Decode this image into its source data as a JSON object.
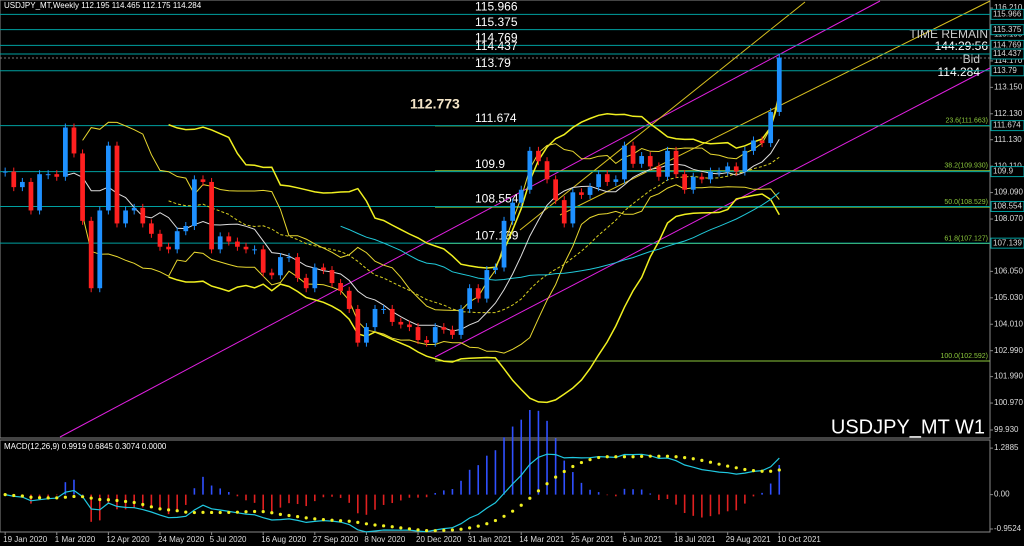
{
  "header": "USDJPY_MT,Weekly  112.195 114.465 112.175 114.284",
  "chart_data": {
    "type": "candlestick",
    "symbol_label": "USDJPY_MT W1",
    "annotation": "112.773",
    "time_remain_label": "TIME REMAIN",
    "time_remain": "144:29:56",
    "bid_label": "Bid",
    "bid": 114.284,
    "ylim": [
      99.66,
      116.52
    ],
    "yticks": [
      {
        "value": 116.21,
        "label": "116.210"
      },
      {
        "value": 115.19,
        "label": "115.190"
      },
      {
        "value": 114.17,
        "label": "114.170"
      },
      {
        "value": 113.15,
        "label": "113.150"
      },
      {
        "value": 112.13,
        "label": "112.130"
      },
      {
        "value": 111.13,
        "label": "111.130"
      },
      {
        "value": 110.11,
        "label": "110.110"
      },
      {
        "value": 109.09,
        "label": "109.090"
      },
      {
        "value": 108.07,
        "label": "108.070"
      },
      {
        "value": 107.05,
        "label": "107.050"
      },
      {
        "value": 106.05,
        "label": "106.050"
      },
      {
        "value": 105.03,
        "label": "105.030"
      },
      {
        "value": 104.01,
        "label": "104.010"
      },
      {
        "value": 102.99,
        "label": "102.990"
      },
      {
        "value": 101.99,
        "label": "101.990"
      },
      {
        "value": 100.97,
        "label": "100.970"
      },
      {
        "value": 99.93,
        "label": "99.930"
      }
    ],
    "xlim": [
      -0.6,
      114.5
    ],
    "xticks": [
      {
        "value": 0,
        "label": "19 Jan 2020"
      },
      {
        "value": 6,
        "label": "1 Mar 2020"
      },
      {
        "value": 12,
        "label": "12 Apr 2020"
      },
      {
        "value": 18,
        "label": "24 May 2020"
      },
      {
        "value": 24,
        "label": "5 Jul 2020"
      },
      {
        "value": 30,
        "label": "16 Aug 2020"
      },
      {
        "value": 36,
        "label": "27 Sep 2020"
      },
      {
        "value": 42,
        "label": "8 Nov 2020"
      },
      {
        "value": 48,
        "label": "20 Dec 2020"
      },
      {
        "value": 54,
        "label": "31 Jan 2021"
      },
      {
        "value": 60,
        "label": "14 Mar 2021"
      },
      {
        "value": 66,
        "label": "25 Apr 2021"
      },
      {
        "value": 72,
        "label": "6 Jun 2021"
      },
      {
        "value": 78,
        "label": "18 Jul 2021"
      },
      {
        "value": 84,
        "label": "29 Aug 2021"
      },
      {
        "value": 90,
        "label": "10 Oct 2021"
      }
    ],
    "candles": {
      "up_color": "#1e90ff",
      "down_color": "#ff2020",
      "close": [
        109.9,
        109.3,
        109.5,
        108.4,
        109.8,
        109.8,
        109.7,
        111.6,
        110.6,
        108.0,
        105.4,
        108.4,
        110.9,
        107.9,
        108.4,
        108.5,
        107.9,
        107.5,
        107.0,
        106.9,
        107.6,
        107.8,
        109.6,
        109.5,
        106.9,
        107.4,
        107.2,
        107.0,
        106.9,
        106.9,
        106.0,
        105.9,
        106.6,
        106.6,
        105.8,
        105.4,
        106.2,
        106.1,
        105.6,
        105.3,
        104.6,
        103.3,
        103.9,
        104.6,
        104.6,
        104.1,
        104.0,
        103.9,
        103.4,
        103.3,
        103.9,
        103.8,
        103.6,
        104.6,
        105.4,
        105.0,
        106.1,
        106.2,
        108.0,
        108.7,
        109.2,
        110.7,
        110.3,
        109.6,
        108.8,
        107.9,
        109.1,
        109.0,
        109.3,
        109.8,
        109.5,
        109.6,
        110.9,
        110.2,
        110.5,
        110.1,
        109.7,
        110.7,
        109.8,
        109.2,
        109.7,
        109.6,
        109.9,
        109.9,
        110.1,
        109.9,
        110.7,
        111.1,
        111.0,
        112.2,
        114.3
      ]
    },
    "levels_color": "#00a0a0",
    "levels": [
      115.966,
      115.375,
      114.769,
      114.437,
      113.79,
      111.674,
      109.9,
      108.554,
      107.139
    ],
    "fib_color": "#8cc83c",
    "fib": [
      {
        "value": 111.663,
        "label": "23.6(111.663)"
      },
      {
        "value": 109.93,
        "label": "38.2(109.930)"
      },
      {
        "value": 108.529,
        "label": "50.0(108.529)"
      },
      {
        "value": 107.127,
        "label": "61.8(107.127)"
      },
      {
        "value": 102.592,
        "label": "100.0(102.592)"
      }
    ],
    "macd": {
      "label": "MACD(12,26,9) 0.9919 0.6845 0.3074 0.0000",
      "ylim": [
        -1.008,
        1.513
      ],
      "yticks": [
        1.2885,
        {
          "value": 0,
          "label": "0.00"
        },
        -0.9524
      ]
    }
  }
}
